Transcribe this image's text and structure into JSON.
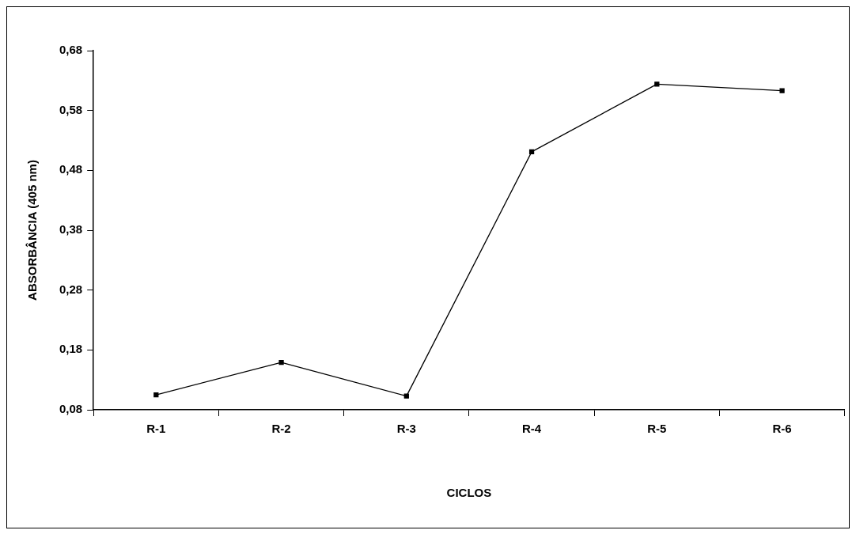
{
  "chart_data": {
    "type": "line",
    "xlabel": "CICLOS",
    "ylabel": "ABSORBÂNCIA (405 nm)",
    "categories": [
      "R-1",
      "R-2",
      "R-3",
      "R-4",
      "R-5",
      "R-6"
    ],
    "series": [
      {
        "color": "#000000",
        "values": [
          0.105,
          0.159,
          0.103,
          0.511,
          0.624,
          0.613
        ]
      }
    ],
    "ylim": [
      0.08,
      0.68
    ],
    "yticks": [
      {
        "value": 0.08,
        "label": "0,08"
      },
      {
        "value": 0.18,
        "label": "0,18"
      },
      {
        "value": 0.28,
        "label": "0,28"
      },
      {
        "value": 0.38,
        "label": "0,38"
      },
      {
        "value": 0.48,
        "label": "0,48"
      },
      {
        "value": 0.58,
        "label": "0,58"
      },
      {
        "value": 0.68,
        "label": "0,68"
      }
    ],
    "grid": false,
    "legend": false,
    "marker": "square",
    "line_style": "solid"
  }
}
